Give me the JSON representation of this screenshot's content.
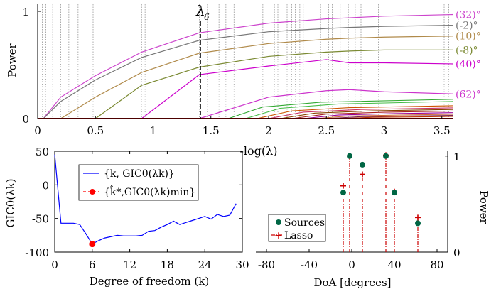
{
  "chart_data": [
    {
      "type": "line",
      "title": "",
      "xlabel": "-log(λ)",
      "ylabel": "Power",
      "xlim": [
        0,
        3.6
      ],
      "ylim": [
        0,
        1
      ],
      "x_ticks": [
        0,
        0.5,
        1,
        1.5,
        2,
        2.5,
        3,
        3.5
      ],
      "y_ticks": [
        0,
        1
      ],
      "tick_labels_x": [
        "0",
        "0.5",
        "1",
        "1.5",
        "2",
        "2.5",
        "3",
        "3.5"
      ],
      "tick_labels_y": [
        "0",
        "1"
      ],
      "marker_label": "λ",
      "marker_subscript": "6",
      "marker_x": 1.41,
      "knot_lines_x": [
        0.04,
        0.07,
        0.09,
        0.13,
        0.2,
        0.27,
        0.35,
        0.48,
        0.9,
        0.93,
        1.4,
        1.43,
        1.47,
        1.57,
        1.63,
        1.7,
        1.77,
        1.95,
        2.05,
        2.08,
        2.16,
        2.2,
        2.23,
        2.27,
        2.3,
        2.45,
        2.52,
        2.55,
        2.62,
        2.69,
        2.75,
        2.8,
        2.95,
        3.32,
        3.45,
        3.52,
        3.56
      ],
      "x": [
        0.05,
        0.2,
        0.5,
        0.9,
        1.4,
        2.0,
        2.5,
        2.7,
        3.0,
        3.6
      ],
      "series": [
        {
          "name": "(32)°",
          "color": "#cc44cc",
          "values": [
            0.0,
            0.2,
            0.4,
            0.62,
            0.8,
            0.89,
            0.93,
            0.94,
            0.955,
            0.97
          ]
        },
        {
          "name": "(-2)°",
          "color": "#777777",
          "values": [
            0.0,
            0.16,
            0.36,
            0.57,
            0.73,
            0.81,
            0.84,
            0.85,
            0.86,
            0.87
          ]
        },
        {
          "name": "(10)°",
          "color": "#b08a4a",
          "values": [
            0.0,
            0.0,
            0.2,
            0.43,
            0.61,
            0.7,
            0.74,
            0.75,
            0.76,
            0.77
          ]
        },
        {
          "name": "(-8)°",
          "color": "#7b8a33",
          "values": [
            0.0,
            0.0,
            0.0,
            0.31,
            0.48,
            0.58,
            0.62,
            0.63,
            0.64,
            0.64
          ]
        },
        {
          "name": "(40)°",
          "color": "#cc00cc",
          "values": [
            0.0,
            0.0,
            0.0,
            0.0,
            0.41,
            0.49,
            0.55,
            0.52,
            0.52,
            0.51
          ]
        },
        {
          "name": "(62)°",
          "color": "#cc33cc",
          "values": [
            0.0,
            0.0,
            0.0,
            0.0,
            0.0,
            0.2,
            0.26,
            0.27,
            0.25,
            0.23
          ]
        }
      ],
      "minor_series": [
        {
          "color": "#33aa33",
          "start": 1.65,
          "end_value": 0.18
        },
        {
          "color": "#44bb44",
          "start": 1.8,
          "end_value": 0.16
        },
        {
          "color": "#cc5500",
          "start": 1.9,
          "end_value": 0.12
        },
        {
          "color": "#cc3366",
          "start": 2.0,
          "end_value": 0.1
        },
        {
          "color": "#884400",
          "start": 2.1,
          "end_value": 0.085
        },
        {
          "color": "#aa2222",
          "start": 2.2,
          "end_value": 0.07
        },
        {
          "color": "#990099",
          "start": 2.3,
          "end_value": 0.055
        },
        {
          "color": "#cc6633",
          "start": 2.4,
          "end_value": 0.04
        },
        {
          "color": "#772255",
          "start": 2.5,
          "end_value": 0.03
        },
        {
          "color": "#bb3300",
          "start": 2.6,
          "end_value": 0.02
        }
      ]
    },
    {
      "type": "line",
      "xlabel": "Degree of freedom (k)",
      "ylabel": "GIC0(λk)",
      "xlim": [
        0,
        30
      ],
      "ylim": [
        -100,
        50
      ],
      "x_ticks": [
        0,
        6,
        12,
        18,
        24,
        30
      ],
      "y_ticks": [
        50,
        0,
        -50,
        -100
      ],
      "tick_labels_x": [
        "0",
        "6",
        "12",
        "18",
        "24",
        "30"
      ],
      "tick_labels_y": [
        "50",
        "0",
        "-50",
        "-100"
      ],
      "legend": [
        "{k, GIC0(λk)}",
        "{k̂*,GIC0(λk)min}"
      ],
      "legend_position": "top-right",
      "series": [
        {
          "name": "{k, GIC0(λk)}",
          "color": "#0000ff",
          "x": [
            0,
            1,
            2,
            3,
            4,
            5,
            6,
            7,
            8,
            9,
            10,
            11,
            12,
            13,
            14,
            15,
            16,
            17,
            18,
            19,
            20,
            21,
            22,
            23,
            24,
            25,
            26,
            27,
            28,
            29
          ],
          "y": [
            45,
            -57,
            -57,
            -57,
            -59,
            -73,
            -88,
            -83,
            -79,
            -77,
            -75,
            -76,
            -76,
            -76,
            -75,
            -69,
            -68,
            -63,
            -59,
            -54,
            -59,
            -56,
            -53,
            -50,
            -47,
            -51,
            -44,
            -47,
            -45,
            -28
          ]
        }
      ],
      "highlight_point": {
        "name": "{k̂*,GIC0(λk)min}",
        "color": "#ff0000",
        "x": 6,
        "y": -88
      }
    },
    {
      "type": "scatter",
      "xlabel": "DoA  [degrees]",
      "ylabel": "Power",
      "xlim": [
        -90,
        90
      ],
      "ylim": [
        0,
        1.05
      ],
      "x_ticks": [
        -80,
        -40,
        0,
        40,
        80
      ],
      "y_ticks": [
        0,
        1
      ],
      "tick_labels_x": [
        "-80",
        "-40",
        "0",
        "40",
        "80"
      ],
      "tick_labels_y": [
        "0",
        "1"
      ],
      "legend": [
        "Sources",
        "Lasso"
      ],
      "legend_position": "bottom-left",
      "series": [
        {
          "name": "Sources",
          "color": "#006644",
          "x": [
            -8,
            -2,
            10,
            32,
            40,
            62
          ],
          "y": [
            0.62,
            1.0,
            0.91,
            1.0,
            0.62,
            0.3
          ]
        },
        {
          "name": "Lasso",
          "color": "#cc0000",
          "x": [
            -8,
            -2,
            10,
            32,
            40,
            62
          ],
          "y": [
            0.69,
            1.0,
            0.81,
            1.01,
            0.63,
            0.36
          ]
        }
      ]
    }
  ]
}
